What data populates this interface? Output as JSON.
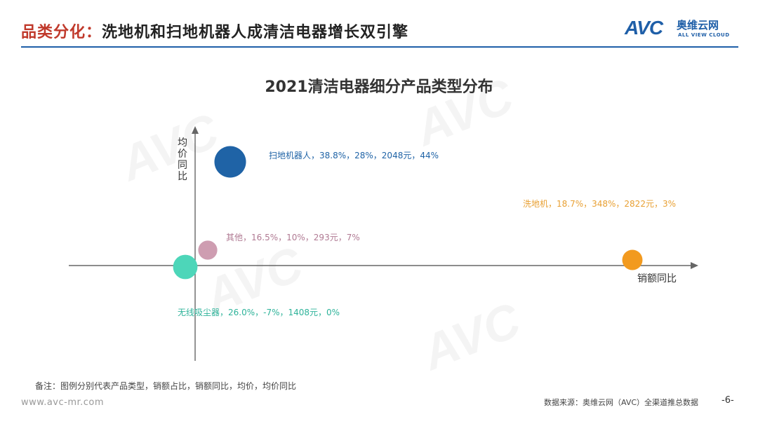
{
  "header": {
    "title_accent": "品类分化：",
    "title_rest": "洗地机和扫地机器人成清洁电器增长双引擎",
    "logo_mark": "AVC",
    "logo_cn": "奥维云网",
    "logo_en": "ALL VIEW CLOUD"
  },
  "chart_data": {
    "type": "scatter",
    "title": "2021清洁电器细分产品类型分布",
    "xlabel": "销额同比",
    "ylabel": "均价同比",
    "points": [
      {
        "label": "扫地机器人，38.8%，28%，2048元，44%",
        "share": 38.8,
        "x": 28,
        "price": 2048,
        "y": 44,
        "color": "#1f63a6"
      },
      {
        "label": "洗地机，18.7%，348%，2822元，3%",
        "share": 18.7,
        "x": 348,
        "price": 2822,
        "y": 3,
        "color": "#f29a1f"
      },
      {
        "label": "其他，16.5%，10%，293元，7%",
        "share": 16.5,
        "x": 10,
        "price": 293,
        "y": 7,
        "color": "#c992a8"
      },
      {
        "label": "无线吸尘器，26.0%，-7%，1408元，0%",
        "share": 26.0,
        "x": -7,
        "price": 1408,
        "y": 0,
        "color": "#4dd6b9"
      }
    ],
    "label_colors": [
      "#1f63a6",
      "#e8a033",
      "#b07a93",
      "#2eb39a"
    ],
    "axis_color": "#666666"
  },
  "footer": {
    "note": "备注：图例分别代表产品类型，销额占比，销额同比，均价，均价同比",
    "site": "www.avc-mr.com",
    "source": "数据来源：奥维云网（AVC）全渠道推总数据",
    "page": "-6-"
  },
  "watermark": "AVC"
}
